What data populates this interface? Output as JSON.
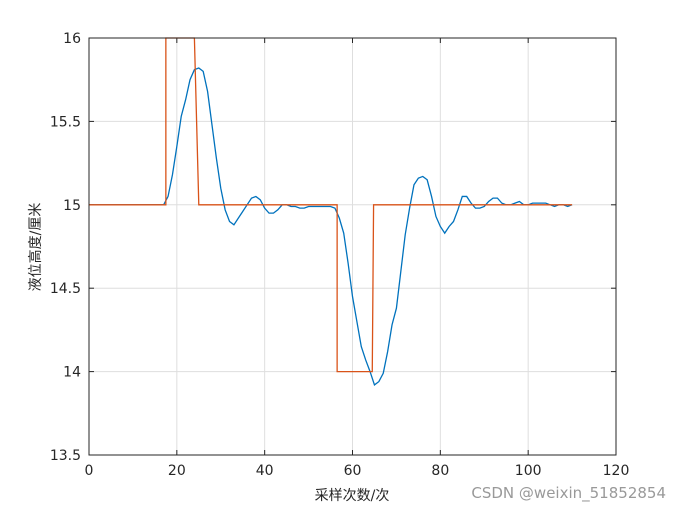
{
  "chart_data": {
    "type": "line",
    "xlabel": "采样次数/次",
    "ylabel": "液位高度/厘米",
    "watermark": "CSDN @weixin_51852854",
    "xlim": [
      0,
      120
    ],
    "xticks": [
      0,
      20,
      40,
      60,
      80,
      100,
      120
    ],
    "ylim": [
      13.5,
      16
    ],
    "yticks": [
      13.5,
      14,
      14.5,
      15,
      15.5,
      16
    ],
    "grid": true,
    "series": [
      {
        "color": "#0072BD",
        "x": [
          0,
          1,
          2,
          3,
          4,
          5,
          6,
          7,
          8,
          9,
          10,
          11,
          12,
          13,
          14,
          15,
          16,
          17,
          18,
          19,
          20,
          21,
          22,
          23,
          24,
          25,
          26,
          27,
          28,
          29,
          30,
          31,
          32,
          33,
          34,
          35,
          36,
          37,
          38,
          39,
          40,
          41,
          42,
          43,
          44,
          45,
          46,
          47,
          48,
          49,
          50,
          51,
          52,
          53,
          54,
          55,
          56,
          57,
          58,
          59,
          60,
          61,
          62,
          63,
          64,
          65,
          66,
          67,
          68,
          69,
          70,
          71,
          72,
          73,
          74,
          75,
          76,
          77,
          78,
          79,
          80,
          81,
          82,
          83,
          84,
          85,
          86,
          87,
          88,
          89,
          90,
          91,
          92,
          93,
          94,
          95,
          96,
          97,
          98,
          99,
          100,
          101,
          102,
          103,
          104,
          105,
          106,
          107,
          108,
          109,
          110
        ],
        "values": [
          15,
          15,
          15,
          15,
          15,
          15,
          15,
          15,
          15,
          15,
          15,
          15,
          15,
          15,
          15,
          15,
          15,
          15,
          15.05,
          15.18,
          15.35,
          15.53,
          15.63,
          15.75,
          15.81,
          15.82,
          15.8,
          15.68,
          15.48,
          15.28,
          15.1,
          14.97,
          14.9,
          14.88,
          14.92,
          14.96,
          15,
          15.04,
          15.05,
          15.03,
          14.98,
          14.95,
          14.95,
          14.97,
          15,
          15,
          14.99,
          14.99,
          14.98,
          14.98,
          14.99,
          14.99,
          14.99,
          14.99,
          14.99,
          14.99,
          14.98,
          14.92,
          14.83,
          14.65,
          14.45,
          14.3,
          14.15,
          14.07,
          14,
          13.92,
          13.94,
          13.99,
          14.12,
          14.28,
          14.38,
          14.6,
          14.82,
          14.98,
          15.12,
          15.16,
          15.17,
          15.15,
          15.05,
          14.93,
          14.87,
          14.83,
          14.87,
          14.9,
          14.97,
          15.05,
          15.05,
          15.01,
          14.98,
          14.98,
          14.99,
          15.02,
          15.04,
          15.04,
          15.01,
          15,
          15,
          15.01,
          15.02,
          15,
          15,
          15.01,
          15.01,
          15.01,
          15.01,
          15,
          14.99,
          15,
          15,
          14.99,
          15
        ]
      },
      {
        "color": "#D95319",
        "x": [
          0,
          17.5,
          17.5,
          24,
          25,
          56.5,
          56.5,
          64.5,
          64.8,
          110
        ],
        "values": [
          15,
          15,
          16,
          16,
          15,
          15,
          14,
          14,
          15,
          15
        ]
      }
    ]
  }
}
